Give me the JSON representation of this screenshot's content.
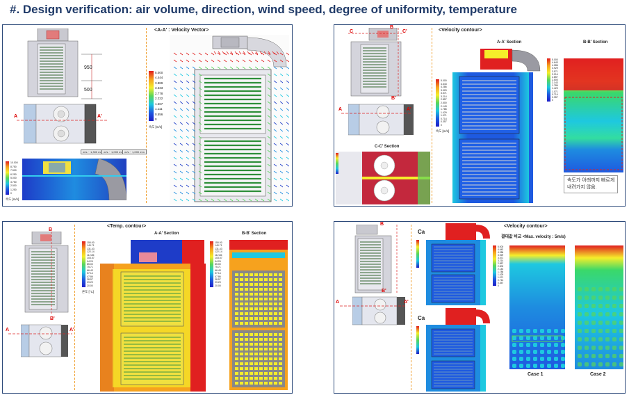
{
  "title": "#. Design verification: air volume, direction, wind speed, degree of uniformity, temperature",
  "colors": {
    "frame": "#2d4a7a",
    "divider": "#f0a030",
    "section_line": "#dd2222",
    "title": "#1f3a68"
  },
  "panel1": {
    "dim_upper": "950",
    "dim_lower": "500",
    "section_a_left": "A",
    "section_a_right": "A'",
    "vector_title": "<A-A' : Velocity Vector>",
    "legend_values": [
      "5.000",
      "4.444",
      "3.889",
      "3.333",
      "2.778",
      "2.222",
      "1.667",
      "1.111",
      "0.556",
      "0"
    ],
    "legend_unit": "속도 [m/s]",
    "small_legend_values": [
      "10.000",
      "8.750",
      "7.500",
      "6.250",
      "5.000",
      "3.750",
      "2.500",
      "1.250",
      "0"
    ],
    "small_legend_unit": "속도 [m/s]",
    "callouts": [
      "m/s ~ 1,300 mm",
      "m/s ~ 1,000 mm",
      "m/s ~ 1,000 mm"
    ]
  },
  "panel2": {
    "title": "<Velocity contour>",
    "section_c_left": "C",
    "section_c_right": "C'",
    "section_b_top": "B",
    "section_b_bottom": "B'",
    "section_a_left": "A",
    "section_a_right": "A'",
    "aa_label": "A-A' Section",
    "bb_label": "B-B' Section",
    "cc_label": "C-C' Section",
    "legend_values": [
      "5.000",
      "4.643",
      "4.286",
      "3.929",
      "3.571",
      "3.214",
      "2.857",
      "2.500",
      "2.143",
      "1.786",
      "1.429",
      "1.071",
      "0.714",
      "0.357",
      "0"
    ],
    "legend_unit": "속도 [m/s]",
    "note_line1": "속도가 아래까지 빠르게",
    "note_line2": "내려가지 않음."
  },
  "panel3": {
    "title": "<Temp. contour>",
    "section_b_top": "B",
    "section_b_bottom": "B'",
    "section_a_left": "A",
    "section_a_right": "A'",
    "aa_label": "A-A' Section",
    "bb_label": "B-B' Section",
    "legend_values": [
      "150.00",
      "140.71",
      "131.43",
      "122.14",
      "112.86",
      "103.57",
      "94.29",
      "85.00",
      "75.71",
      "66.43",
      "57.14",
      "47.86",
      "38.57",
      "29.29",
      "20.00"
    ],
    "legend_unit": "온도 [°C]"
  },
  "panel4": {
    "title": "<Velocity contour>",
    "section_b_top": "B",
    "section_b_bottom": "B'",
    "section_a_left": "A",
    "section_a_right": "A'",
    "case1": "Case 1",
    "case2": "Case 2",
    "compare_label": "결대값 비교 <Max. velocity : 5m/s)",
    "case1_bottom": "Case 1",
    "case2_bottom": "Case 2",
    "legend_values": [
      "5.000",
      "4.643",
      "4.286",
      "3.929",
      "3.571",
      "3.214",
      "2.857",
      "2.500",
      "2.143",
      "1.786",
      "1.429",
      "1.071",
      "0.714",
      "0.357",
      "0"
    ]
  }
}
